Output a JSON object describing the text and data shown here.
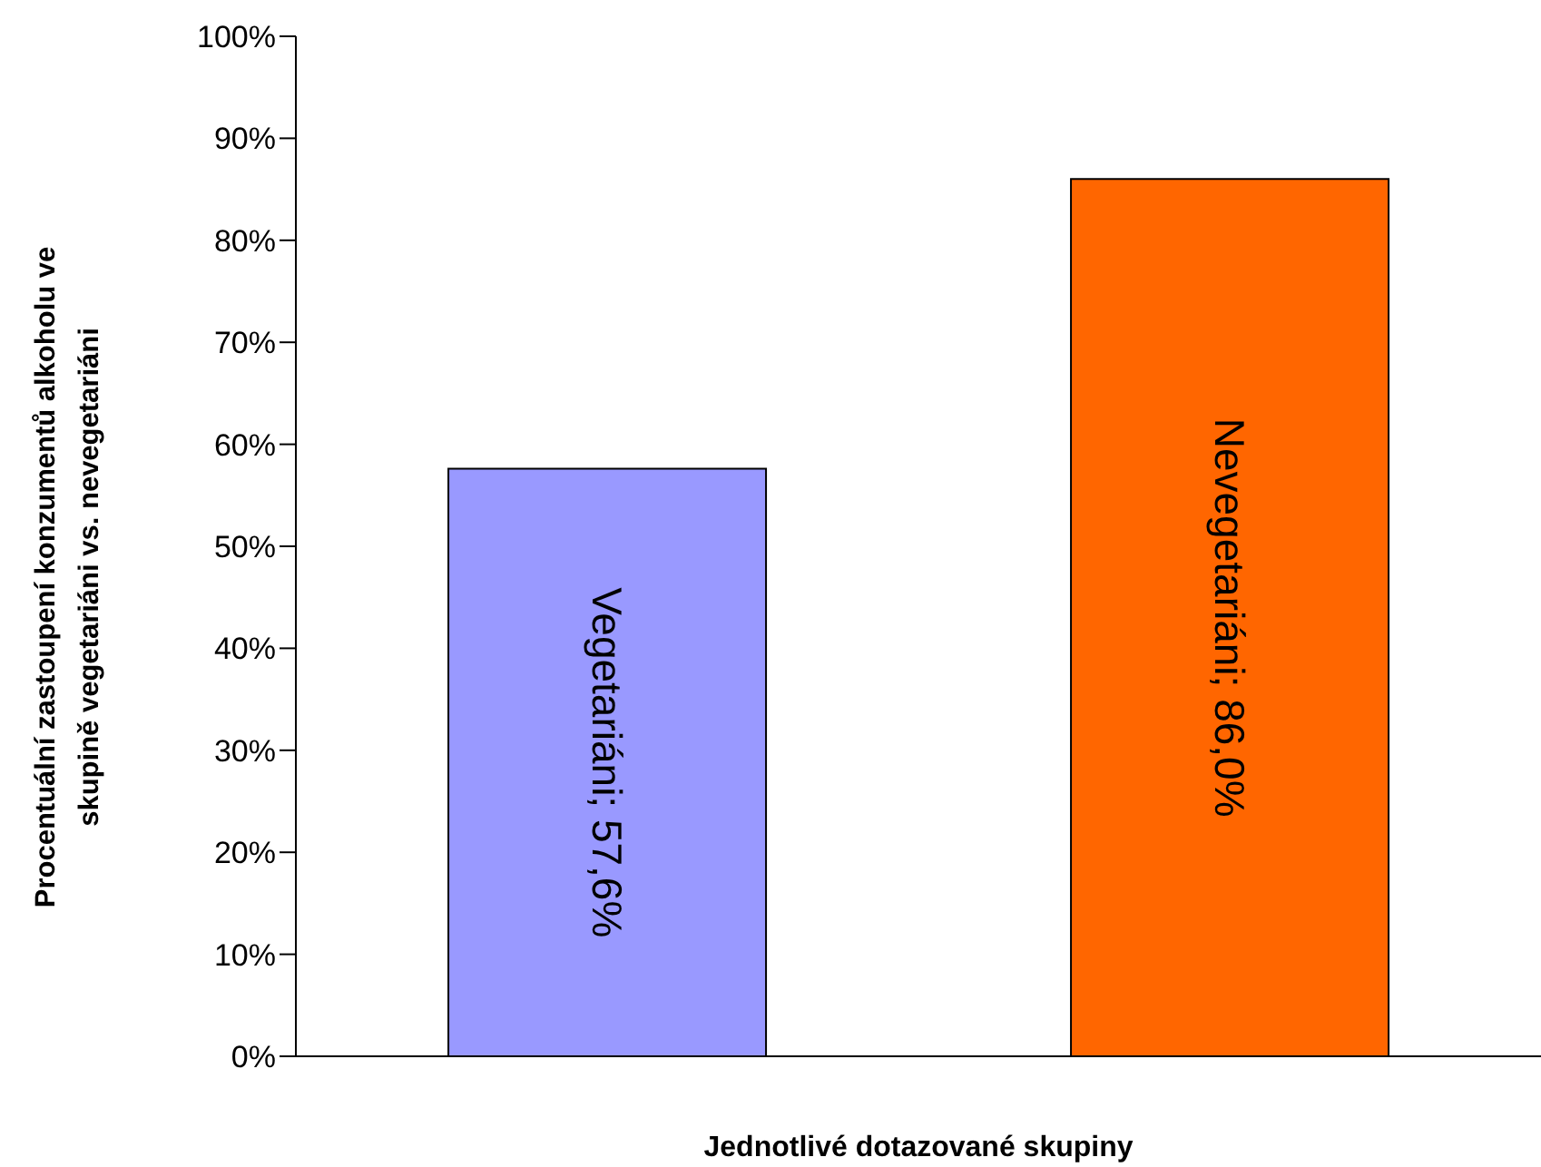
{
  "chart_data": {
    "type": "bar",
    "xlabel": "Jednotlivé dotazované skupiny",
    "ylabel": "Procentuální zastoupení konzumentů alkoholu ve\nskupině vegetariáni vs. nevegetariáni",
    "categories": [
      null,
      null
    ],
    "values": [
      57.6,
      86.0
    ],
    "colors": [
      "#9999ff",
      "#ff6600"
    ],
    "value_labels": [
      "Vegetariáni; 57,6%",
      "Nevegetariáni; 86,0%"
    ],
    "ylim": [
      0,
      100
    ],
    "yticks": [
      {
        "value": 0,
        "label": "0%"
      },
      {
        "value": 10,
        "label": "10%"
      },
      {
        "value": 20,
        "label": "20%"
      },
      {
        "value": 30,
        "label": "30%"
      },
      {
        "value": 40,
        "label": "40%"
      },
      {
        "value": 50,
        "label": "50%"
      },
      {
        "value": 60,
        "label": "60%"
      },
      {
        "value": 70,
        "label": "70%"
      },
      {
        "value": 80,
        "label": "80%"
      },
      {
        "value": 90,
        "label": "90%"
      },
      {
        "value": 100,
        "label": "100%"
      }
    ],
    "grid": false,
    "legend": false
  }
}
